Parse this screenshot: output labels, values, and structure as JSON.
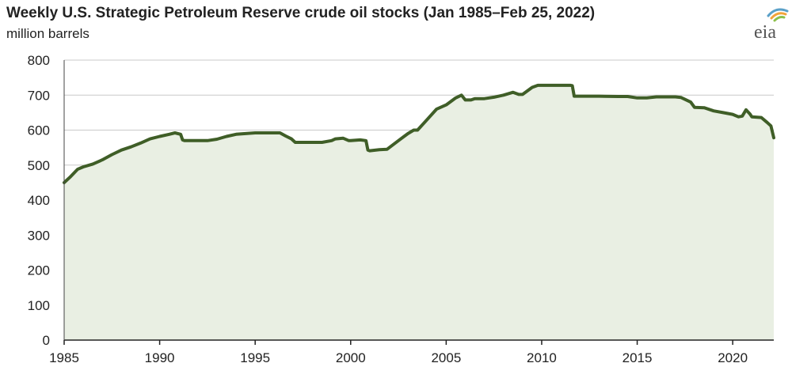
{
  "chart_data": {
    "type": "area",
    "title": "Weekly U.S. Strategic Petroleum Reserve crude oil stocks (Jan 1985–Feb 25, 2022)",
    "ylabel": "million barrels",
    "xlabel": "",
    "xlim": [
      1985,
      2022.15
    ],
    "ylim": [
      0,
      800
    ],
    "yticks": [
      "0",
      "100",
      "200",
      "300",
      "400",
      "500",
      "600",
      "700",
      "800"
    ],
    "xticks": [
      "1985",
      "1990",
      "1995",
      "2000",
      "2005",
      "2010",
      "2015",
      "2020"
    ],
    "series": [
      {
        "name": "SPR crude oil stocks",
        "x": [
          1985.0,
          1985.3,
          1985.7,
          1986.0,
          1986.5,
          1987.0,
          1987.5,
          1988.0,
          1988.5,
          1989.0,
          1989.5,
          1990.0,
          1990.5,
          1990.8,
          1991.1,
          1991.2,
          1991.3,
          1992.0,
          1992.5,
          1993.0,
          1993.5,
          1994.0,
          1994.5,
          1995.0,
          1995.5,
          1996.0,
          1996.3,
          1996.6,
          1996.9,
          1997.1,
          1997.5,
          1998.0,
          1998.5,
          1999.0,
          1999.2,
          1999.6,
          1999.9,
          2000.0,
          2000.5,
          2000.8,
          2000.9,
          2001.0,
          2001.5,
          2001.9,
          2002.5,
          2003.0,
          2003.3,
          2003.5,
          2004.0,
          2004.5,
          2005.0,
          2005.5,
          2005.8,
          2006.0,
          2006.3,
          2006.5,
          2007.0,
          2007.5,
          2008.0,
          2008.5,
          2008.8,
          2009.0,
          2009.5,
          2009.8,
          2010.0,
          2010.5,
          2011.0,
          2011.5,
          2011.6,
          2011.7,
          2012.0,
          2013.0,
          2014.0,
          2014.5,
          2015.0,
          2015.5,
          2016.0,
          2016.5,
          2017.0,
          2017.3,
          2017.8,
          2018.0,
          2018.5,
          2019.0,
          2019.5,
          2020.0,
          2020.3,
          2020.5,
          2020.7,
          2020.9,
          2021.0,
          2021.5,
          2021.8,
          2022.0,
          2022.15
        ],
        "values": [
          450,
          465,
          488,
          495,
          503,
          515,
          530,
          543,
          552,
          563,
          575,
          582,
          588,
          592,
          588,
          572,
          570,
          570,
          570,
          574,
          582,
          588,
          590,
          592,
          592,
          592,
          592,
          583,
          575,
          565,
          565,
          565,
          565,
          570,
          575,
          577,
          570,
          570,
          572,
          570,
          543,
          541,
          544,
          545,
          570,
          590,
          600,
          600,
          630,
          660,
          672,
          692,
          700,
          686,
          686,
          690,
          690,
          694,
          700,
          708,
          702,
          702,
          722,
          728,
          728,
          728,
          728,
          728,
          727,
          697,
          697,
          697,
          696,
          696,
          692,
          692,
          695,
          695,
          695,
          693,
          680,
          665,
          664,
          655,
          650,
          645,
          638,
          640,
          658,
          646,
          638,
          636,
          622,
          612,
          578
        ]
      }
    ]
  }
}
